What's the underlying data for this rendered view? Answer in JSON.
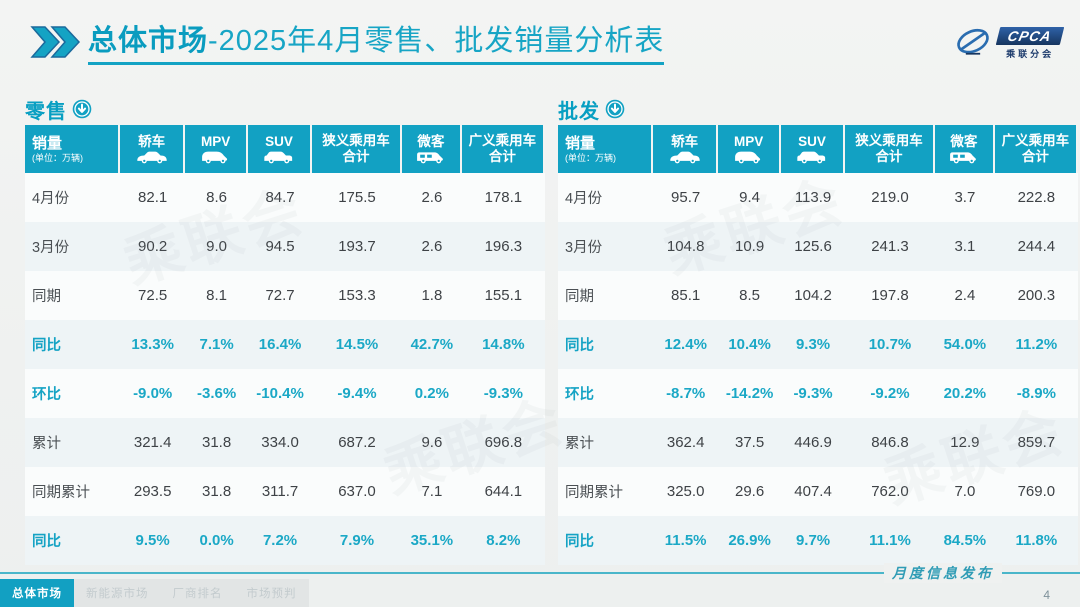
{
  "title": {
    "highlight": "总体市场",
    "rest": "-2025年4月零售、批发销量分析表"
  },
  "logo": {
    "acronym": "CPCA",
    "cn": "乘联分会"
  },
  "unit_header": {
    "label": "销量",
    "unit": "(单位：万辆)"
  },
  "columns": [
    {
      "line1": "轿车",
      "icon": "sedan-icon"
    },
    {
      "line1": "MPV",
      "icon": "mpv-icon"
    },
    {
      "line1": "SUV",
      "icon": "suv-icon"
    },
    {
      "line1": "狭义乘用车",
      "line2": "合计",
      "icon": null
    },
    {
      "line1": "微客",
      "icon": "van-icon"
    },
    {
      "line1": "广义乘用车",
      "line2": "合计",
      "icon": null
    }
  ],
  "tables": [
    {
      "name": "retail",
      "label": "零售",
      "rows": [
        {
          "label": "4月份",
          "type": "value",
          "values": [
            "82.1",
            "8.6",
            "84.7",
            "175.5",
            "2.6",
            "178.1"
          ]
        },
        {
          "label": "3月份",
          "type": "value",
          "values": [
            "90.2",
            "9.0",
            "94.5",
            "193.7",
            "2.6",
            "196.3"
          ]
        },
        {
          "label": "同期",
          "type": "value",
          "values": [
            "72.5",
            "8.1",
            "72.7",
            "153.3",
            "1.8",
            "155.1"
          ]
        },
        {
          "label": "同比",
          "type": "percent",
          "values": [
            "13.3%",
            "7.1%",
            "16.4%",
            "14.5%",
            "42.7%",
            "14.8%"
          ]
        },
        {
          "label": "环比",
          "type": "percent",
          "values": [
            "-9.0%",
            "-3.6%",
            "-10.4%",
            "-9.4%",
            "0.2%",
            "-9.3%"
          ]
        },
        {
          "label": "累计",
          "type": "value",
          "values": [
            "321.4",
            "31.8",
            "334.0",
            "687.2",
            "9.6",
            "696.8"
          ]
        },
        {
          "label": "同期累计",
          "type": "value",
          "values": [
            "293.5",
            "31.8",
            "311.7",
            "637.0",
            "7.1",
            "644.1"
          ]
        },
        {
          "label": "同比",
          "type": "percent",
          "values": [
            "9.5%",
            "0.0%",
            "7.2%",
            "7.9%",
            "35.1%",
            "8.2%"
          ]
        }
      ]
    },
    {
      "name": "wholesale",
      "label": "批发",
      "rows": [
        {
          "label": "4月份",
          "type": "value",
          "values": [
            "95.7",
            "9.4",
            "113.9",
            "219.0",
            "3.7",
            "222.8"
          ]
        },
        {
          "label": "3月份",
          "type": "value",
          "values": [
            "104.8",
            "10.9",
            "125.6",
            "241.3",
            "3.1",
            "244.4"
          ]
        },
        {
          "label": "同期",
          "type": "value",
          "values": [
            "85.1",
            "8.5",
            "104.2",
            "197.8",
            "2.4",
            "200.3"
          ]
        },
        {
          "label": "同比",
          "type": "percent",
          "values": [
            "12.4%",
            "10.4%",
            "9.3%",
            "10.7%",
            "54.0%",
            "11.2%"
          ]
        },
        {
          "label": "环比",
          "type": "percent",
          "values": [
            "-8.7%",
            "-14.2%",
            "-9.3%",
            "-9.2%",
            "20.2%",
            "-8.9%"
          ]
        },
        {
          "label": "累计",
          "type": "value",
          "values": [
            "362.4",
            "37.5",
            "446.9",
            "846.8",
            "12.9",
            "859.7"
          ]
        },
        {
          "label": "同期累计",
          "type": "value",
          "values": [
            "325.0",
            "29.6",
            "407.4",
            "762.0",
            "7.0",
            "769.0"
          ]
        },
        {
          "label": "同比",
          "type": "percent",
          "values": [
            "11.5%",
            "26.9%",
            "9.7%",
            "11.1%",
            "84.5%",
            "11.8%"
          ]
        }
      ]
    }
  ],
  "footer": {
    "tabs": [
      {
        "label": "总体市场",
        "active": true
      },
      {
        "label": "新能源市场",
        "active": false
      },
      {
        "label": "厂商排名",
        "active": false
      },
      {
        "label": "市场预判",
        "active": false
      }
    ],
    "release_label": "月度信息发布",
    "page_number": "4"
  },
  "watermark_text": "乘联会",
  "colors": {
    "accent_teal": "#12a1c3",
    "percent_teal": "#1ba8c6",
    "logo_navy": "#16355f"
  }
}
